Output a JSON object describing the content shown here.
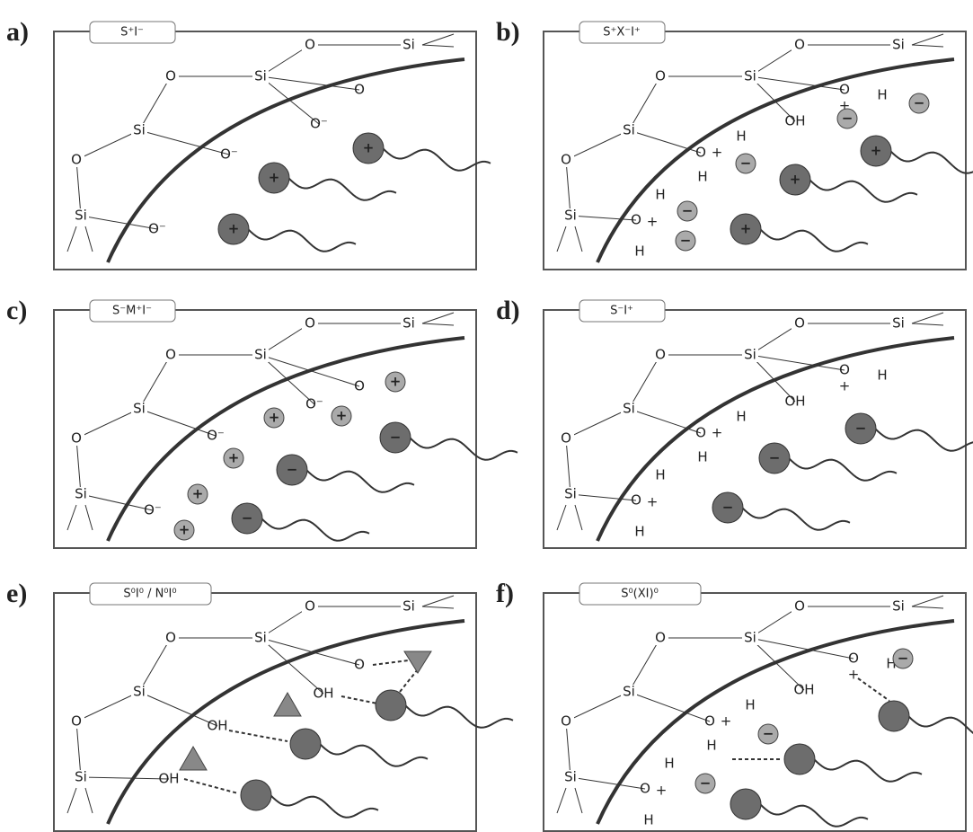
{
  "panels": [
    {
      "label": "a)",
      "tag": "S⁺I⁻",
      "skeleton": [
        "O",
        "Si",
        "O",
        "Si",
        "Si",
        "O",
        "Si"
      ],
      "atoms": [
        "O",
        "O⁻",
        "O⁻",
        "O⁻"
      ],
      "ions": [],
      "heads": [
        "+",
        "+",
        "+"
      ]
    },
    {
      "label": "b)",
      "tag": "S⁺X⁻I⁺",
      "skeleton": [
        "O",
        "Si",
        "O",
        "Si",
        "Si",
        "O",
        "Si"
      ],
      "atoms": [
        "O",
        "+",
        "H",
        "OH",
        "O",
        "+",
        "H",
        "H",
        "O",
        "+",
        "H",
        "H"
      ],
      "ions": [
        "−",
        "−",
        "−",
        "−",
        "−"
      ],
      "heads": [
        "+",
        "+",
        "+"
      ]
    },
    {
      "label": "c)",
      "tag": "S⁻M⁺I⁻",
      "skeleton": [
        "O",
        "Si",
        "O",
        "Si",
        "Si",
        "O",
        "Si"
      ],
      "atoms": [
        "O",
        "O⁻",
        "O⁻",
        "O⁻"
      ],
      "ions": [
        "+",
        "+",
        "+",
        "+",
        "+",
        "+"
      ],
      "heads": [
        "−",
        "−",
        "−"
      ]
    },
    {
      "label": "d)",
      "tag": "S⁻I⁺",
      "skeleton": [
        "O",
        "Si",
        "O",
        "Si",
        "Si",
        "O",
        "Si"
      ],
      "atoms": [
        "O",
        "+",
        "H",
        "OH",
        "O",
        "+",
        "H",
        "H",
        "O",
        "+",
        "H",
        "H"
      ],
      "ions": [],
      "heads": [
        "−",
        "−",
        "−"
      ]
    },
    {
      "label": "e)",
      "tag": "S⁰I⁰ / N⁰I⁰",
      "skeleton": [
        "O",
        "Si",
        "O",
        "Si",
        "Si",
        "O",
        "Si"
      ],
      "atoms": [
        "O",
        "OH",
        "OH",
        "OH"
      ],
      "ions": [],
      "heads": []
    },
    {
      "label": "f)",
      "tag": "S⁰(XI)⁰",
      "skeleton": [
        "O",
        "Si",
        "O",
        "Si",
        "Si",
        "O",
        "Si"
      ],
      "atoms": [
        "O",
        "+",
        "H",
        "OH",
        "O",
        "+",
        "H",
        "H",
        "O",
        "+",
        "H",
        "H"
      ],
      "ions": [
        "−",
        "−",
        "−"
      ],
      "heads": []
    }
  ]
}
